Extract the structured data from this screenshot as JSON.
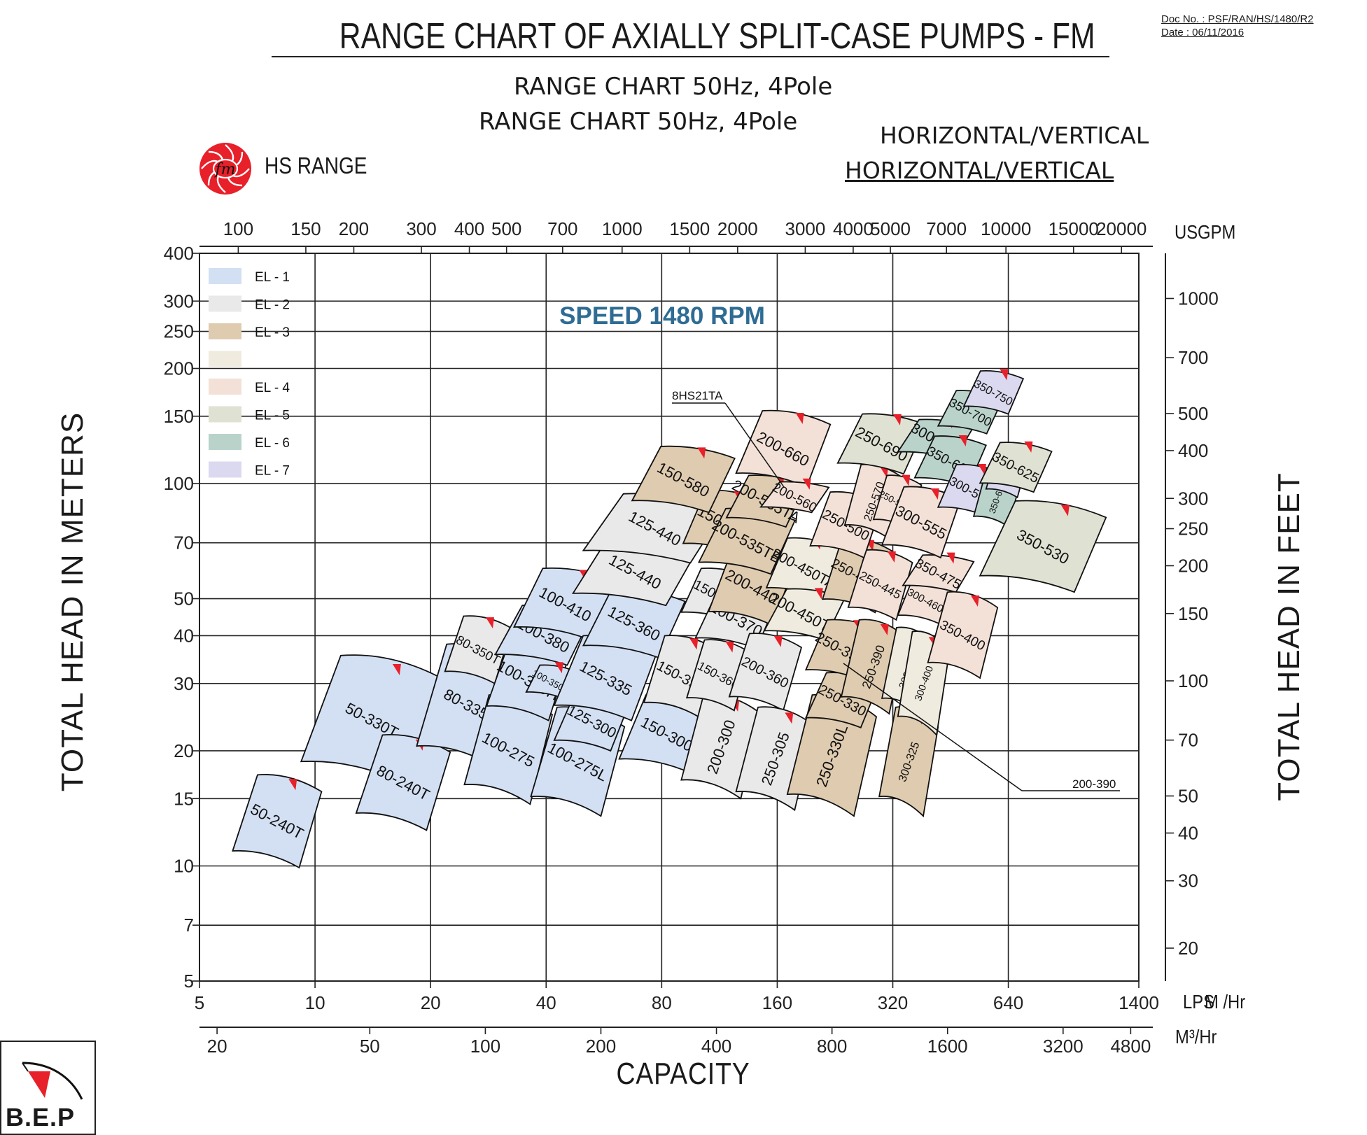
{
  "header": {
    "title": "RANGE CHART OF AXIALLY SPLIT-CASE PUMPS - FM",
    "doc_no": "Doc No. : PSF/RAN/HS/1480/R2",
    "date": "Date : 06/11/2016",
    "subtitle_1": "RANGE  CHART 50Hz, 4Pole",
    "subtitle_2": "RANGE  CHART 50Hz, 4Pole",
    "orientation_1": "HORIZONTAL/VERTICAL",
    "orientation_2": "HORIZONTAL/VERTICAL",
    "logo_text": "fm",
    "range_label": "HS RANGE"
  },
  "footer": {
    "company_logo": "B.E.P"
  },
  "colors": {
    "EL-1": "#d3e0f3",
    "EL-2": "#e9e9e9",
    "EL-3": "#dfcbaf",
    "EL-3b": "#efebdf",
    "EL-4": "#f3e1d8",
    "EL-5": "#dfe2d3",
    "EL-6": "#b9d3cb",
    "EL-7": "#dbd9ef",
    "marker": "#e8202a",
    "speed_text": "#2f6c94",
    "logo": "#e8202a"
  },
  "chart_data": {
    "type": "range-chart",
    "speed_label": "SPEED 1480 RPM",
    "x_scale": "log",
    "y_scale": "log",
    "x_primary": {
      "unit_label": "LPS",
      "range": [
        5,
        1400
      ],
      "ticks": [
        "5",
        "10",
        "20",
        "40",
        "80",
        "160",
        "320",
        "640",
        "1400"
      ]
    },
    "x_secondary": {
      "unit_label": "M³/Hr",
      "unit_label_overlap": "M /Hr",
      "ticks": [
        "20",
        "50",
        "100",
        "200",
        "400",
        "800",
        "1600",
        "3200",
        "4800"
      ]
    },
    "x_top": {
      "unit_label": "USGPM",
      "ticks": [
        "100",
        "150",
        "200",
        "300",
        "400",
        "500",
        "700",
        "1000",
        "1500",
        "2000",
        "3000",
        "4000",
        "5000",
        "7000",
        "10000",
        "15000",
        "20000"
      ]
    },
    "y_left": {
      "title": "TOTAL HEAD IN METERS",
      "range": [
        5,
        400
      ],
      "ticks": [
        "5",
        "7",
        "10",
        "15",
        "20",
        "30",
        "40",
        "50",
        "70",
        "100",
        "150",
        "200",
        "250",
        "300",
        "400"
      ]
    },
    "y_right": {
      "title": "TOTAL HEAD IN FEET",
      "ticks": [
        "20",
        "30",
        "40",
        "50",
        "70",
        "100",
        "150",
        "200",
        "250",
        "300",
        "400",
        "500",
        "700",
        "1000"
      ]
    },
    "x_title": "CAPACITY",
    "legend": [
      {
        "label": "EL - 1",
        "color": "#d3e0f3"
      },
      {
        "label": "EL - 2",
        "color": "#e9e9e9"
      },
      {
        "label": "EL - 3",
        "color": "#dfcbaf"
      },
      {
        "label": "",
        "color": "#efebdf"
      },
      {
        "label": "EL - 4",
        "color": "#f3e1d8"
      },
      {
        "label": "EL - 5",
        "color": "#dfe2d3"
      },
      {
        "label": "EL - 6",
        "color": "#b9d3cb"
      },
      {
        "label": "EL - 7",
        "color": "#dbd9ef"
      }
    ],
    "pumps": [
      {
        "name": "50-240T",
        "el": "EL-1",
        "q": [
          6.1,
          10.4
        ],
        "h": [
          9.9,
          17.3
        ]
      },
      {
        "name": "50-330T",
        "el": "EL-1",
        "q": [
          9.2,
          21.5
        ],
        "h": [
          16.3,
          35.5
        ]
      },
      {
        "name": "80-240T",
        "el": "EL-1",
        "q": [
          12.8,
          22.5
        ],
        "h": [
          12.4,
          22.0
        ]
      },
      {
        "name": "80-335T",
        "el": "EL-1",
        "q": [
          18.4,
          35.0
        ],
        "h": [
          18.0,
          38.0
        ]
      },
      {
        "name": "80-350T",
        "el": "EL-2",
        "q": [
          21.8,
          32.5
        ],
        "h": [
          30.0,
          45.0
        ]
      },
      {
        "name": "100-275",
        "el": "EL-1",
        "q": [
          24.5,
          41.5
        ],
        "h": [
          14.5,
          28.0
        ]
      },
      {
        "name": "100-350H",
        "el": "EL-1",
        "q": [
          28.0,
          46.0
        ],
        "h": [
          24.0,
          39.0
        ]
      },
      {
        "name": "100-380",
        "el": "EL-1",
        "q": [
          29.5,
          52.5
        ],
        "h": [
          33.5,
          48.0
        ]
      },
      {
        "name": "100-410",
        "el": "EL-1",
        "q": [
          33.0,
          61.0
        ],
        "h": [
          39.0,
          60.0
        ]
      },
      {
        "name": "100-350T",
        "el": "EL-1",
        "q": [
          35.5,
          47.5
        ],
        "h": [
          27.5,
          33.5
        ]
      },
      {
        "name": "100-275L",
        "el": "EL-1",
        "q": [
          36.5,
          64.0
        ],
        "h": [
          13.5,
          26.0
        ]
      },
      {
        "name": "125-300",
        "el": "EL-1",
        "q": [
          42.0,
          66.0
        ],
        "h": [
          20.0,
          28.5
        ]
      },
      {
        "name": "125-335",
        "el": "EL-1",
        "q": [
          42.0,
          78.0
        ],
        "h": [
          24.0,
          40.0
        ]
      },
      {
        "name": "125-360",
        "el": "EL-1",
        "q": [
          50.0,
          92.0
        ],
        "h": [
          35.0,
          53.0
        ]
      },
      {
        "name": "125-440",
        "el": "EL-2",
        "q": [
          47.0,
          99.0
        ],
        "h": [
          48.0,
          72.0
        ]
      },
      {
        "name": "125-440",
        "el": "EL-2",
        "q": [
          50.0,
          118.0
        ],
        "h": [
          62.0,
          94.0
        ]
      },
      {
        "name": "150-300",
        "el": "EL-1",
        "q": [
          62.0,
          110.0
        ],
        "h": [
          17.5,
          28.0
        ]
      },
      {
        "name": "150-390",
        "el": "EL-2",
        "q": [
          72.0,
          112.0
        ],
        "h": [
          24.5,
          40.0
        ]
      },
      {
        "name": "150-440",
        "el": "EL-2",
        "q": [
          90.0,
          138.0
        ],
        "h": [
          43.5,
          60.0
        ]
      },
      {
        "name": "150-530",
        "el": "EL-3",
        "q": [
          91.0,
          148.0
        ],
        "h": [
          65.0,
          96.0
        ]
      },
      {
        "name": "150-580",
        "el": "EL-3",
        "q": [
          67.0,
          124.0
        ],
        "h": [
          84.0,
          125.0
        ]
      },
      {
        "name": "200-300",
        "el": "EL-2",
        "q": [
          90.0,
          145.0
        ],
        "h": [
          15.0,
          28.0
        ]
      },
      {
        "name": "150-360",
        "el": "EL-2",
        "q": [
          93.0,
          136.0
        ],
        "h": [
          25.5,
          39.0
        ]
      },
      {
        "name": "200-370",
        "el": "EL-2",
        "q": [
          98.0,
          160.0
        ],
        "h": [
          37.0,
          53.0
        ]
      },
      {
        "name": "200-440",
        "el": "EL-3",
        "q": [
          106.0,
          178.0
        ],
        "h": [
          42.5,
          68.0
        ]
      },
      {
        "name": "200-535TB",
        "el": "EL-3",
        "q": [
          100.0,
          178.0
        ],
        "h": [
          58.0,
          86.0
        ]
      },
      {
        "name": "200-535TA",
        "el": "EL-3",
        "q": [
          118.0,
          190.0
        ],
        "h": [
          77.0,
          105.0
        ]
      },
      {
        "name": "200-660",
        "el": "EL-4",
        "q": [
          125.0,
          220.0
        ],
        "h": [
          98.0,
          155.0
        ]
      },
      {
        "name": "200-560",
        "el": "EL-4",
        "q": [
          145.0,
          218.0
        ],
        "h": [
          84.0,
          101.0
        ]
      },
      {
        "name": "200-450TA",
        "el": "EL-3b",
        "q": [
          150.0,
          235.0
        ],
        "h": [
          50.0,
          72.0
        ]
      },
      {
        "name": "200-450TB",
        "el": "EL-3b",
        "q": [
          148.0,
          240.0
        ],
        "h": [
          39.0,
          53.0
        ]
      },
      {
        "name": "200-360",
        "el": "EL-2",
        "q": [
          120.0,
          185.0
        ],
        "h": [
          25.5,
          40.5
        ]
      },
      {
        "name": "250-305",
        "el": "EL-2",
        "q": [
          125.0,
          200.0
        ],
        "h": [
          14.0,
          26.0
        ]
      },
      {
        "name": "250-330L",
        "el": "EL-3",
        "q": [
          170.0,
          290.0
        ],
        "h": [
          13.5,
          28.0
        ]
      },
      {
        "name": "250-330",
        "el": "EL-3",
        "q": [
          190.0,
          295.0
        ],
        "h": [
          23.0,
          32.0
        ]
      },
      {
        "name": "250-390L",
        "el": "EL-3",
        "q": [
          190.0,
          300.0
        ],
        "h": [
          30.5,
          44.0
        ]
      },
      {
        "name": "250-390",
        "el": "EL-3",
        "q": [
          235.0,
          345.0
        ],
        "h": [
          25.0,
          44.0
        ]
      },
      {
        "name": "250-445L",
        "el": "EL-3",
        "q": [
          210.0,
          320.0
        ],
        "h": [
          46.0,
          72.0
        ]
      },
      {
        "name": "250-445",
        "el": "EL-4",
        "q": [
          245.0,
          360.0
        ],
        "h": [
          44.0,
          67.0
        ]
      },
      {
        "name": "250-500",
        "el": "EL-4",
        "q": [
          195.0,
          300.0
        ],
        "h": [
          64.0,
          95.0
        ]
      },
      {
        "name": "250-570",
        "el": "EL-4",
        "q": [
          240.0,
          340.0
        ],
        "h": [
          72.0,
          112.0
        ]
      },
      {
        "name": "250-560S",
        "el": "EL-4",
        "q": [
          285.0,
          380.0
        ],
        "h": [
          76.0,
          105.0
        ]
      },
      {
        "name": "250-690",
        "el": "EL-5",
        "q": [
          230.0,
          390.0
        ],
        "h": [
          106.0,
          152.0
        ]
      },
      {
        "name": "300-325",
        "el": "EL-3",
        "q": [
          295.0,
          420.0
        ],
        "h": [
          13.5,
          26.0
        ]
      },
      {
        "name": "300-380",
        "el": "EL-3b",
        "q": [
          300.0,
          410.0
        ],
        "h": [
          25.0,
          42.0
        ]
      },
      {
        "name": "300-400",
        "el": "EL-3b",
        "q": [
          330.0,
          450.0
        ],
        "h": [
          22.0,
          41.0
        ]
      },
      {
        "name": "300-460",
        "el": "EL-4",
        "q": [
          330.0,
          460.0
        ],
        "h": [
          43.0,
          57.0
        ]
      },
      {
        "name": "350-475",
        "el": "EL-4",
        "q": [
          340.0,
          520.0
        ],
        "h": [
          52.0,
          65.0
        ]
      },
      {
        "name": "350-400",
        "el": "EL-4",
        "q": [
          395.0,
          600.0
        ],
        "h": [
          31.0,
          52.0
        ]
      },
      {
        "name": "300-555",
        "el": "EL-4",
        "q": [
          300.0,
          480.0
        ],
        "h": [
          64.0,
          98.0
        ]
      },
      {
        "name": "300-660",
        "el": "EL-6",
        "q": [
          330.0,
          520.0
        ],
        "h": [
          116.0,
          147.0
        ]
      },
      {
        "name": "350-600",
        "el": "EL-6",
        "q": [
          365.0,
          560.0
        ],
        "h": [
          98.0,
          133.0
        ]
      },
      {
        "name": "300-595",
        "el": "EL-7",
        "q": [
          420.0,
          620.0
        ],
        "h": [
          82.0,
          112.0
        ]
      },
      {
        "name": "350-650",
        "el": "EL-6",
        "q": [
          520.0,
          690.0
        ],
        "h": [
          77.0,
          110.0
        ]
      },
      {
        "name": "400-660",
        "el": "EL-7",
        "q": [
          560.0,
          720.0
        ],
        "h": [
          92.0,
          122.0
        ]
      },
      {
        "name": "350-625",
        "el": "EL-5",
        "q": [
          540.0,
          830.0
        ],
        "h": [
          95.0,
          128.0
        ]
      },
      {
        "name": "350-700",
        "el": "EL-6",
        "q": [
          420.0,
          620.0
        ],
        "h": [
          135.0,
          175.0
        ]
      },
      {
        "name": "350-750",
        "el": "EL-7",
        "q": [
          490.0,
          700.0
        ],
        "h": [
          152.0,
          197.0
        ]
      },
      {
        "name": "350-530",
        "el": "EL-5",
        "q": [
          540.0,
          1150.0
        ],
        "h": [
          52.0,
          90.0
        ]
      }
    ],
    "callouts": [
      {
        "label": "8HS21TA",
        "target": "200-535TA"
      },
      {
        "label": "200-390",
        "target": "250-390L"
      }
    ]
  }
}
